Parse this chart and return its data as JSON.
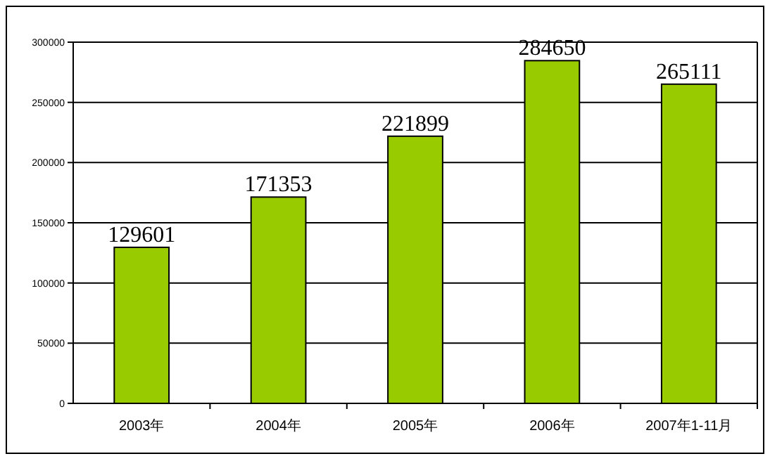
{
  "chart_data": {
    "type": "bar",
    "categories": [
      "2003年",
      "2004年",
      "2005年",
      "2006年",
      "2007年1-11月"
    ],
    "values": [
      129601,
      171353,
      221899,
      284650,
      265111
    ],
    "color": "#99cc00",
    "ylim": [
      0,
      300000
    ],
    "yticks": [
      0,
      50000,
      100000,
      150000,
      200000,
      250000,
      300000
    ],
    "grid": "y",
    "data_labels": true
  }
}
